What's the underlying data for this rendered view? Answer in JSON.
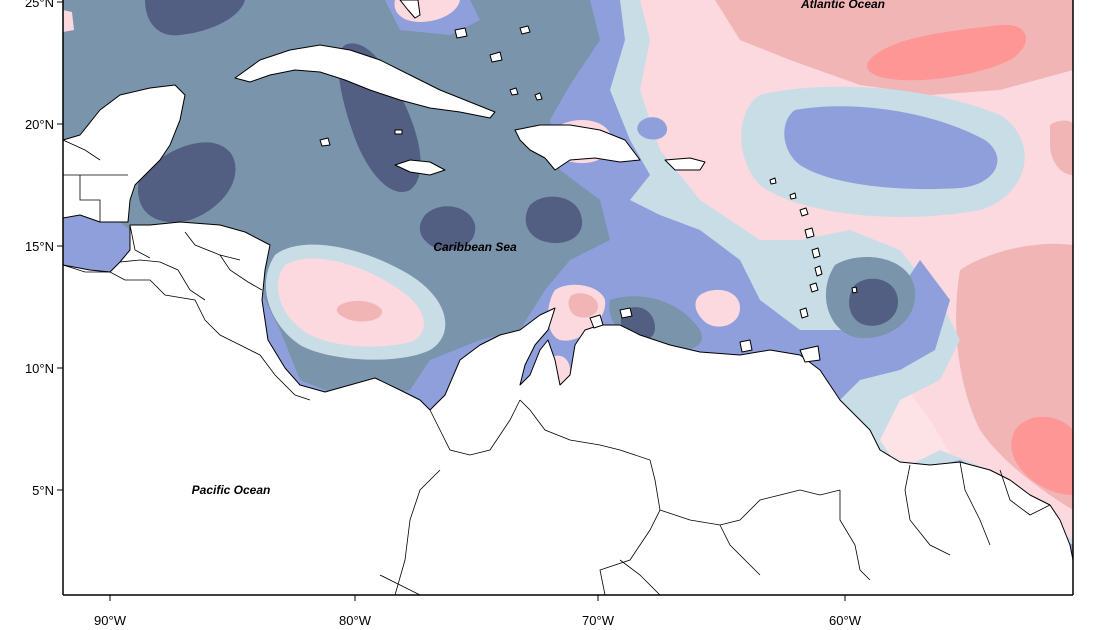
{
  "map": {
    "colors": {
      "ocean_background": "#fde3e6",
      "strong_negative": "#525f82",
      "negative": "#7a94ab",
      "moderate_negative": "#8f9fdc",
      "weak_negative": "#c9dde6",
      "neutral": "#ffeaea",
      "weak_positive": "#fbd9de",
      "positive": "#f2b5b5",
      "strong_positive": "#ff9696",
      "land": "#ffffff",
      "coastline": "#000000"
    },
    "labels": {
      "atlantic": "Atlantic Ocean",
      "caribbean": "Caribbean Sea",
      "pacific": "Pacific Ocean"
    },
    "lat_ticks": [
      "25°N",
      "20°N",
      "15°N",
      "10°N",
      "5°N"
    ],
    "lon_ticks": [
      "90°W",
      "80°W",
      "70°W",
      "60°W"
    ]
  }
}
